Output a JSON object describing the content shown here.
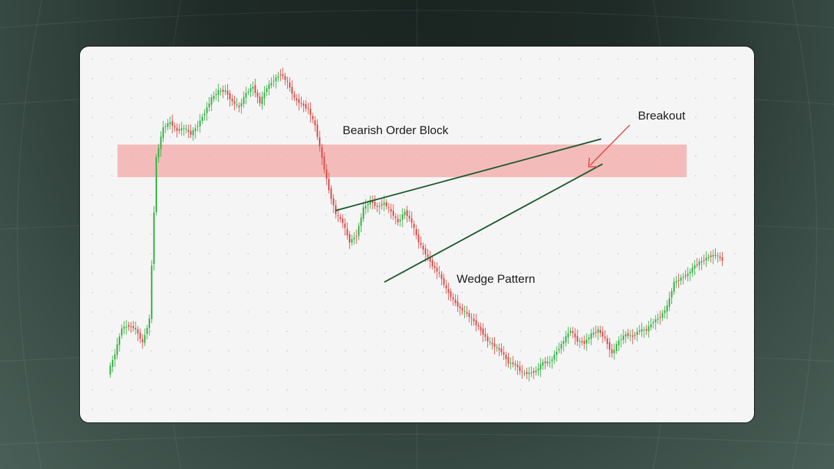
{
  "colors": {
    "bull": "#3cb44a",
    "bear": "#d9534f",
    "zone": "#f2a8a6",
    "trendline": "#1f5a2e",
    "arrow": "#e0473f",
    "text": "#1c1c1c"
  },
  "chart_data": {
    "type": "candlestick",
    "grid": "dotted",
    "price_path": [
      0,
      18,
      42,
      44,
      41,
      28,
      50,
      200,
      228,
      233,
      225,
      228,
      222,
      230,
      242,
      255,
      262,
      262,
      252,
      247,
      260,
      266,
      251,
      265,
      272,
      278,
      270,
      255,
      250,
      245,
      230,
      200,
      170,
      148,
      140,
      122,
      128,
      153,
      160,
      154,
      158,
      150,
      140,
      150,
      140,
      122,
      111,
      100,
      92,
      78,
      68,
      60,
      55,
      48,
      40,
      30,
      25,
      20,
      10,
      8,
      0,
      0,
      2,
      10,
      10,
      20,
      30,
      40,
      30,
      28,
      36,
      40,
      32,
      18,
      30,
      36,
      34,
      40,
      40,
      48,
      52,
      62,
      84,
      88,
      92,
      100,
      104,
      108,
      110,
      105
    ],
    "zones": [
      {
        "label": "Bearish Order Block"
      }
    ],
    "annotations": {
      "order_block": "Bearish Order Block",
      "wedge": "Wedge Pattern",
      "breakout": "Breakout"
    }
  }
}
